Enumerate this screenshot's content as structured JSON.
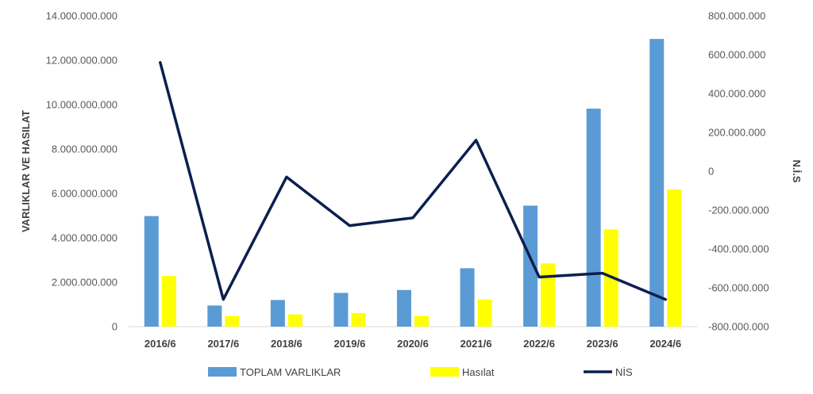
{
  "chart_data": {
    "type": "bar",
    "categories": [
      "2016/6",
      "2017/6",
      "2018/6",
      "2019/6",
      "2020/6",
      "2021/6",
      "2022/6",
      "2023/6",
      "2024/6"
    ],
    "series": [
      {
        "name": "TOPLAM VARLIKLAR",
        "type": "bar",
        "axis": "left",
        "color": "#5B9BD5",
        "values": [
          4980000000,
          950000000,
          1200000000,
          1520000000,
          1650000000,
          2630000000,
          5450000000,
          9820000000,
          12960000000
        ]
      },
      {
        "name": "Hasılat",
        "type": "bar",
        "axis": "left",
        "color": "#FFFF00",
        "values": [
          2280000000,
          480000000,
          550000000,
          610000000,
          480000000,
          1220000000,
          2850000000,
          4380000000,
          6180000000
        ]
      },
      {
        "name": "NİS",
        "type": "line",
        "axis": "right",
        "color": "#0B1F4F",
        "values": [
          560000000,
          -660000000,
          -30000000,
          -280000000,
          -240000000,
          160000000,
          -545000000,
          -525000000,
          -660000000
        ]
      }
    ],
    "ylabel": "VARLIKLAR VE HASILAT",
    "y2label": "N.İ.S",
    "ylim": [
      0,
      14000000000
    ],
    "y2lim": [
      -800000000,
      800000000
    ],
    "yticks": [
      "0",
      "2.000.000.000",
      "4.000.000.000",
      "6.000.000.000",
      "8.000.000.000",
      "10.000.000.000",
      "12.000.000.000",
      "14.000.000.000"
    ],
    "y2ticks": [
      "-800.000.000",
      "-600.000.000",
      "-400.000.000",
      "-200.000.000",
      "0",
      "200.000.000",
      "400.000.000",
      "600.000.000",
      "800.000.000"
    ],
    "grid": false,
    "legend": "bottom"
  }
}
